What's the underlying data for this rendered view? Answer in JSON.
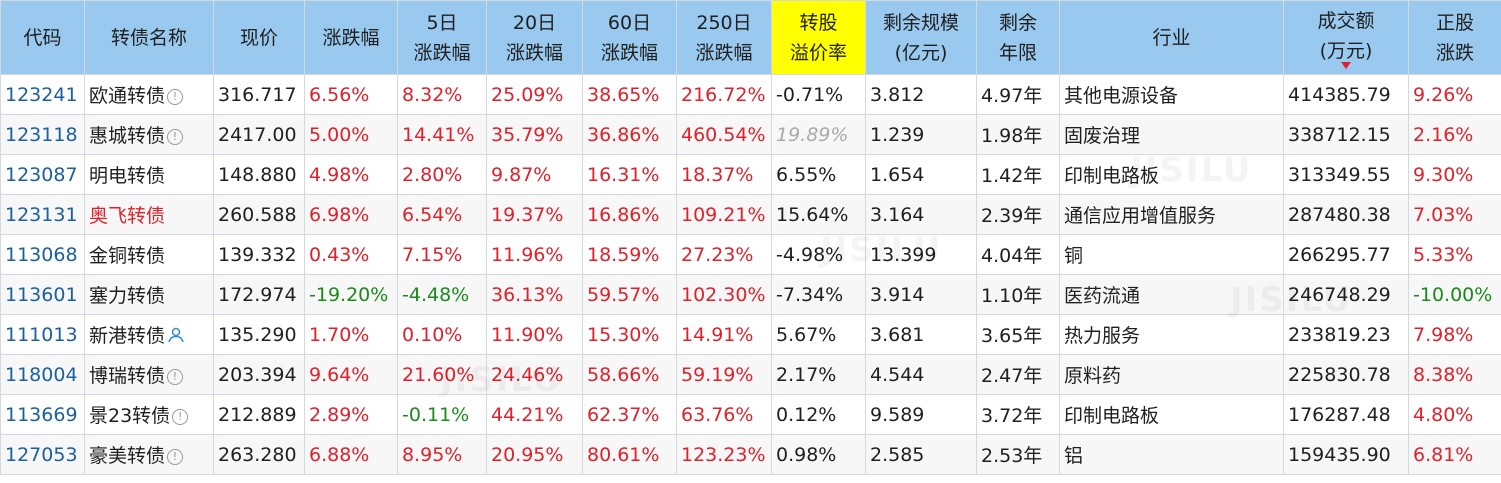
{
  "headers": [
    "代码",
    "转债名称",
    "现价",
    "涨跌幅",
    "5日\n涨跌幅",
    "20日\n涨跌幅",
    "60日\n涨跌幅",
    "250日\n涨跌幅",
    "转股\n溢价率",
    "剩余规模\n(亿元)",
    "剩余\n年限",
    "行业",
    "成交额\n(万元)",
    "正股\n涨跌"
  ],
  "highlight_color": "#ffff00",
  "up_color": "#e0202a",
  "down_color": "#1b8a1b",
  "rows": [
    {
      "code": "123241",
      "name": "欧通转债",
      "icon": "info-icon",
      "price": "316.717",
      "chg": "6.56%",
      "chg5": "8.32%",
      "chg20": "25.09%",
      "chg60": "38.65%",
      "chg250": "216.72%",
      "premium": "-0.71%",
      "scale": "3.812",
      "years": "4.97年",
      "industry": "其他电源设备",
      "turnover": "414385.79",
      "stock_chg": "9.26%"
    },
    {
      "code": "123118",
      "name": "惠城转债",
      "icon": "info-icon",
      "price": "2417.00",
      "chg": "5.00%",
      "chg5": "14.41%",
      "chg20": "35.79%",
      "chg60": "36.86%",
      "chg250": "460.54%",
      "premium": "19.89%",
      "scale": "1.239",
      "years": "1.98年",
      "industry": "固废治理",
      "turnover": "338712.15",
      "stock_chg": "2.16%"
    },
    {
      "code": "123087",
      "name": "明电转债",
      "icon": "",
      "price": "148.880",
      "chg": "4.98%",
      "chg5": "2.80%",
      "chg20": "9.87%",
      "chg60": "16.31%",
      "chg250": "18.37%",
      "premium": "6.55%",
      "scale": "1.654",
      "years": "1.42年",
      "industry": "印制电路板",
      "turnover": "313349.55",
      "stock_chg": "9.30%"
    },
    {
      "code": "123131",
      "name": "奥飞转债",
      "icon": "",
      "price": "260.588",
      "chg": "6.98%",
      "chg5": "6.54%",
      "chg20": "19.37%",
      "chg60": "16.86%",
      "chg250": "109.21%",
      "premium": "15.64%",
      "scale": "3.164",
      "years": "2.39年",
      "industry": "通信应用增值服务",
      "turnover": "287480.38",
      "stock_chg": "7.03%"
    },
    {
      "code": "113068",
      "name": "金铜转债",
      "icon": "",
      "price": "139.332",
      "chg": "0.43%",
      "chg5": "7.15%",
      "chg20": "11.96%",
      "chg60": "18.59%",
      "chg250": "27.23%",
      "premium": "-4.98%",
      "scale": "13.399",
      "years": "4.04年",
      "industry": "铜",
      "turnover": "266295.77",
      "stock_chg": "5.33%"
    },
    {
      "code": "113601",
      "name": "塞力转债",
      "icon": "",
      "price": "172.974",
      "chg": "-19.20%",
      "chg5": "-4.48%",
      "chg20": "36.13%",
      "chg60": "59.57%",
      "chg250": "102.30%",
      "premium": "-7.34%",
      "scale": "3.914",
      "years": "1.10年",
      "industry": "医药流通",
      "turnover": "246748.29",
      "stock_chg": "-10.00%"
    },
    {
      "code": "111013",
      "name": "新港转债",
      "icon": "person-icon",
      "price": "135.290",
      "chg": "1.70%",
      "chg5": "0.10%",
      "chg20": "11.90%",
      "chg60": "15.30%",
      "chg250": "14.91%",
      "premium": "5.67%",
      "scale": "3.681",
      "years": "3.65年",
      "industry": "热力服务",
      "turnover": "233819.23",
      "stock_chg": "7.98%"
    },
    {
      "code": "118004",
      "name": "博瑞转债",
      "icon": "info-icon",
      "price": "203.394",
      "chg": "9.64%",
      "chg5": "21.60%",
      "chg20": "24.46%",
      "chg60": "58.66%",
      "chg250": "59.19%",
      "premium": "2.17%",
      "scale": "4.544",
      "years": "2.47年",
      "industry": "原料药",
      "turnover": "225830.78",
      "stock_chg": "8.38%"
    },
    {
      "code": "113669",
      "name": "景23转债",
      "icon": "info-icon",
      "price": "212.889",
      "chg": "2.89%",
      "chg5": "-0.11%",
      "chg20": "44.21%",
      "chg60": "62.37%",
      "chg250": "63.76%",
      "premium": "0.12%",
      "scale": "9.589",
      "years": "3.72年",
      "industry": "印制电路板",
      "turnover": "176287.48",
      "stock_chg": "4.80%"
    },
    {
      "code": "127053",
      "name": "豪美转债",
      "icon": "info-icon",
      "price": "263.280",
      "chg": "6.88%",
      "chg5": "8.95%",
      "chg20": "20.95%",
      "chg60": "80.61%",
      "chg250": "123.23%",
      "premium": "0.98%",
      "scale": "2.585",
      "years": "2.53年",
      "industry": "铝",
      "turnover": "159435.90",
      "stock_chg": "6.81%"
    }
  ]
}
